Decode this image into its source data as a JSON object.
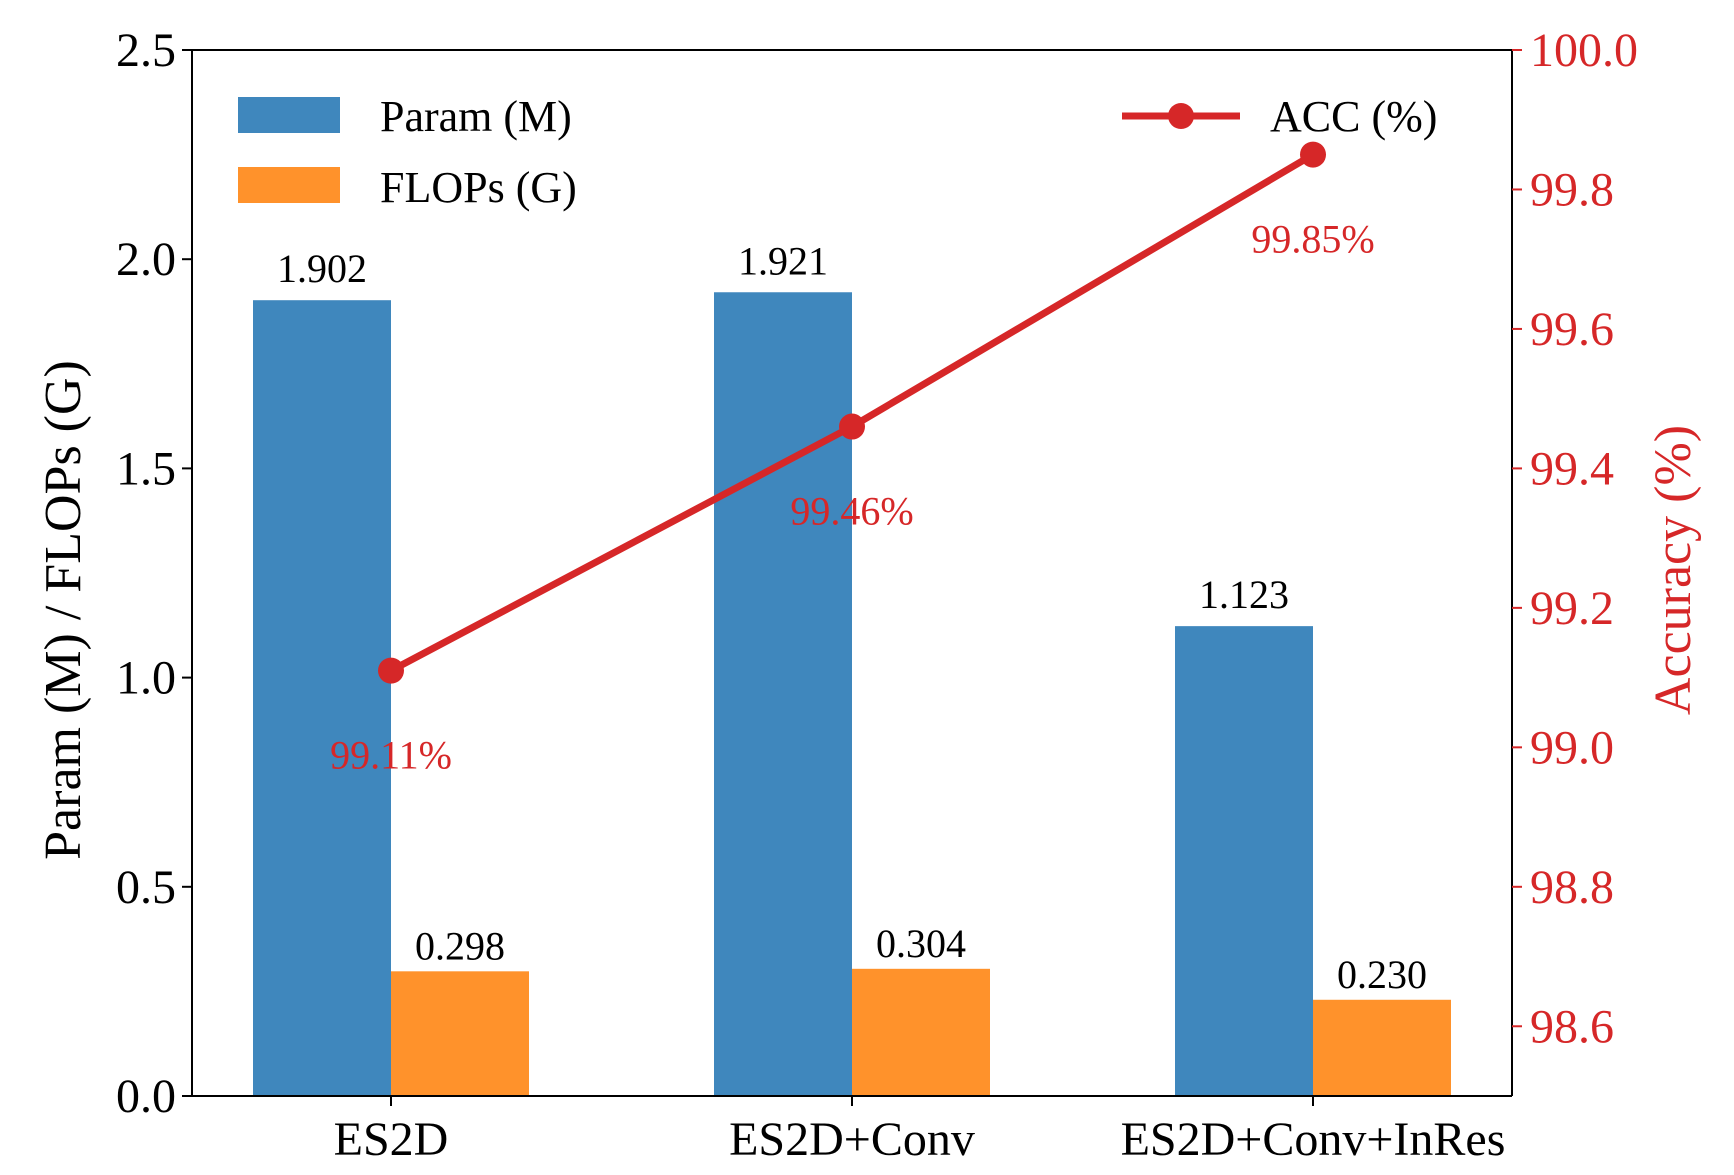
{
  "chart_data": {
    "type": "bar",
    "categories": [
      "ES2D",
      "ES2D+Conv",
      "ES2D+Conv+InRes"
    ],
    "series": [
      {
        "name": "Param (M)",
        "axis": "left",
        "kind": "bar",
        "values": [
          1.902,
          1.921,
          1.123
        ],
        "labels": [
          "1.902",
          "1.921",
          "1.123"
        ],
        "color": "#3f87bd"
      },
      {
        "name": "FLOPs (G)",
        "axis": "left",
        "kind": "bar",
        "values": [
          0.298,
          0.304,
          0.23
        ],
        "labels": [
          "0.298",
          "0.304",
          "0.230"
        ],
        "color": "#ff922b"
      },
      {
        "name": "ACC (%)",
        "axis": "right",
        "kind": "line",
        "values": [
          99.11,
          99.46,
          99.85
        ],
        "labels": [
          "99.11%",
          "99.46%",
          "99.85%"
        ],
        "color": "#d62728"
      }
    ],
    "ylabel": "Param (M) / FLOPs (G)",
    "ylabel_right": "Accuracy (%)",
    "ylim": [
      0,
      2.5
    ],
    "ylim_right": [
      98.5,
      100.0
    ],
    "yticks": [
      "0.0",
      "0.5",
      "1.0",
      "1.5",
      "2.0",
      "2.5"
    ],
    "yticks_right": [
      "98.6",
      "98.8",
      "99.0",
      "99.2",
      "99.4",
      "99.6",
      "99.8",
      "100.0"
    ],
    "legend": {
      "left_placement": "top-left",
      "right_placement": "top-right"
    },
    "grid": false,
    "accent_color": "#d62728"
  }
}
